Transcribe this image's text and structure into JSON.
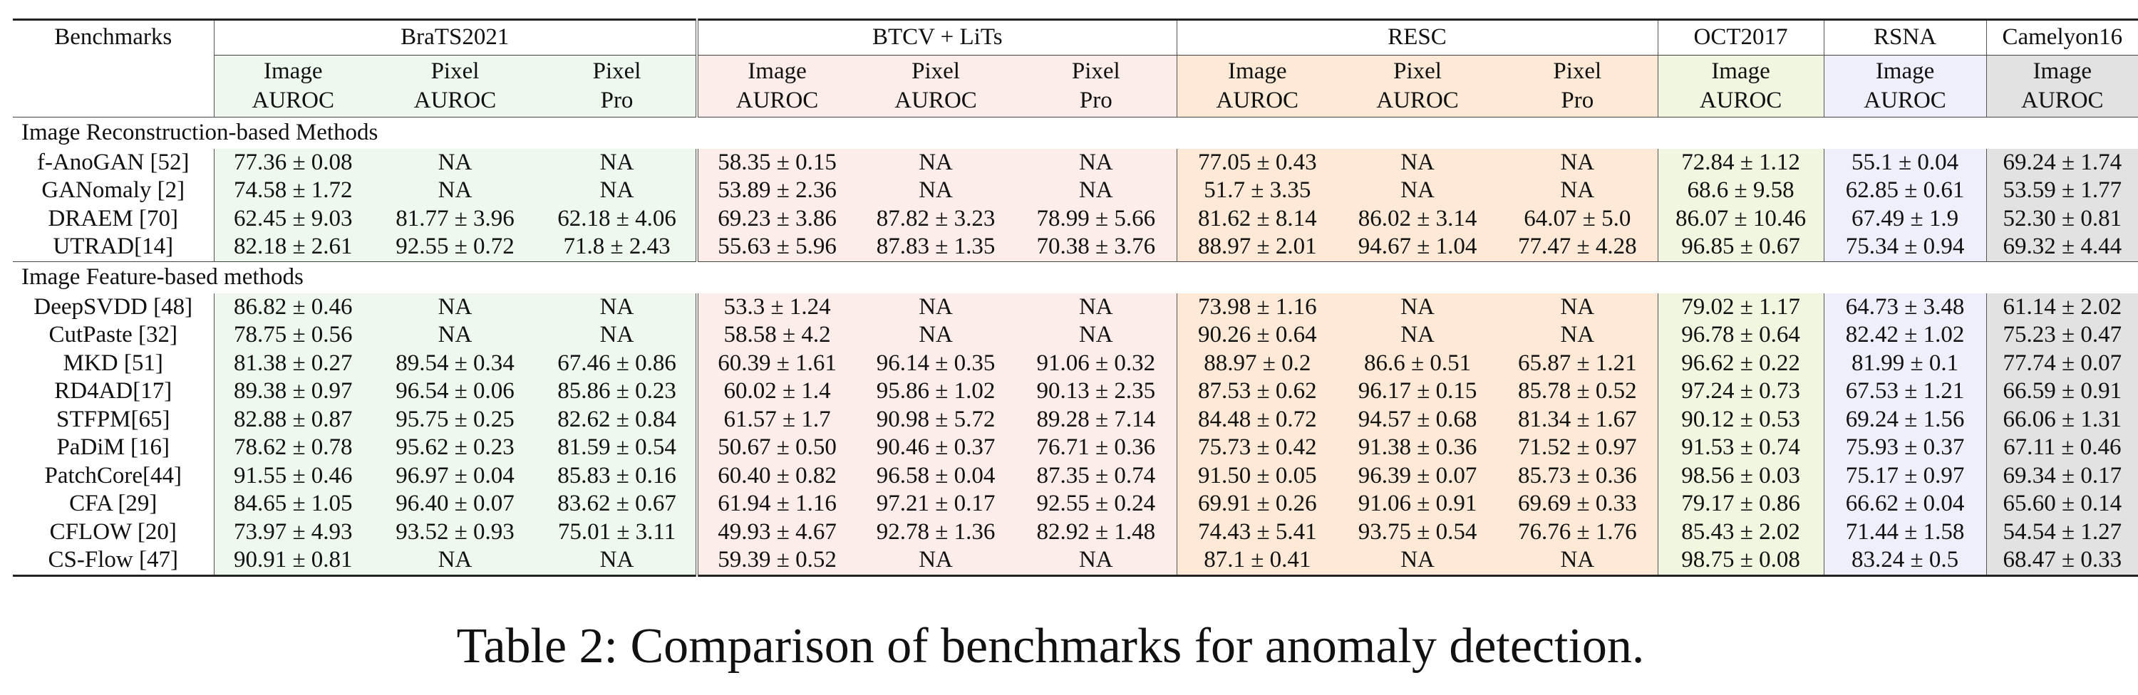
{
  "header": {
    "benchmarks_label": "Benchmarks",
    "datasets": [
      {
        "name": "BraTS2021",
        "metrics": [
          "Image\nAUROC",
          "Pixel\nAUROC",
          "Pixel\nPro"
        ],
        "color": "#eef8ee"
      },
      {
        "name": "BTCV + LiTs",
        "metrics": [
          "Image\nAUROC",
          "Pixel\nAUROC",
          "Pixel\nPro"
        ],
        "color": "#fcecea"
      },
      {
        "name": "RESC",
        "metrics": [
          "Image\nAUROC",
          "Pixel\nAUROC",
          "Pixel\nPro"
        ],
        "color": "#fde9d6"
      },
      {
        "name": "OCT2017",
        "metrics": [
          "Image\nAUROC"
        ],
        "color": "#f0f6e0"
      },
      {
        "name": "RSNA",
        "metrics": [
          "Image\nAUROC"
        ],
        "color": "#eeeffb"
      },
      {
        "name": "Camelyon16",
        "metrics": [
          "Image\nAUROC"
        ],
        "color": "#e2e2e2"
      }
    ]
  },
  "sections": [
    {
      "title": "Image Reconstruction-based Methods",
      "rows": [
        {
          "method": "f-AnoGAN [52]",
          "values": [
            "77.36 ± 0.08",
            "NA",
            "NA",
            "58.35 ± 0.15",
            "NA",
            "NA",
            "77.05 ± 0.43",
            "NA",
            "NA",
            "72.84 ± 1.12",
            "55.1 ± 0.04",
            "69.24 ± 1.74"
          ]
        },
        {
          "method": "GANomaly [2]",
          "values": [
            "74.58 ± 1.72",
            "NA",
            "NA",
            "53.89 ± 2.36",
            "NA",
            "NA",
            "51.7 ± 3.35",
            "NA",
            "NA",
            "68.6 ± 9.58",
            "62.85 ± 0.61",
            "53.59 ± 1.77"
          ]
        },
        {
          "method": "DRAEM [70]",
          "values": [
            "62.45 ± 9.03",
            "81.77 ± 3.96",
            "62.18 ± 4.06",
            "69.23 ± 3.86",
            "87.82 ± 3.23",
            "78.99 ± 5.66",
            "81.62 ± 8.14",
            "86.02 ± 3.14",
            "64.07 ± 5.0",
            "86.07 ± 10.46",
            "67.49 ± 1.9",
            "52.30 ± 0.81"
          ]
        },
        {
          "method": "UTRAD[14]",
          "values": [
            "82.18 ± 2.61",
            "92.55 ± 0.72",
            "71.8 ± 2.43",
            "55.63 ± 5.96",
            "87.83 ± 1.35",
            "70.38 ± 3.76",
            "88.97 ± 2.01",
            "94.67 ± 1.04",
            "77.47 ± 4.28",
            "96.85 ± 0.67",
            "75.34 ± 0.94",
            "69.32 ± 4.44"
          ]
        }
      ]
    },
    {
      "title": "Image Feature-based methods",
      "rows": [
        {
          "method": "DeepSVDD [48]",
          "values": [
            "86.82 ± 0.46",
            "NA",
            "NA",
            "53.3 ± 1.24",
            "NA",
            "NA",
            "73.98 ± 1.16",
            "NA",
            "NA",
            "79.02 ± 1.17",
            "64.73 ± 3.48",
            "61.14 ± 2.02"
          ]
        },
        {
          "method": "CutPaste [32]",
          "values": [
            "78.75 ± 0.56",
            "NA",
            "NA",
            "58.58 ± 4.2",
            "NA",
            "NA",
            "90.26 ± 0.64",
            "NA",
            "NA",
            "96.78 ± 0.64",
            "82.42 ± 1.02",
            "75.23 ± 0.47"
          ]
        },
        {
          "method": "MKD [51]",
          "values": [
            "81.38 ± 0.27",
            "89.54 ± 0.34",
            "67.46 ± 0.86",
            "60.39 ± 1.61",
            "96.14 ± 0.35",
            "91.06 ± 0.32",
            "88.97 ± 0.2",
            "86.6 ± 0.51",
            "65.87 ± 1.21",
            "96.62 ± 0.22",
            "81.99 ± 0.1",
            "77.74 ± 0.07"
          ]
        },
        {
          "method": "RD4AD[17]",
          "values": [
            "89.38 ± 0.97",
            "96.54 ± 0.06",
            "85.86 ± 0.23",
            "60.02 ± 1.4",
            "95.86 ± 1.02",
            "90.13 ± 2.35",
            "87.53 ± 0.62",
            "96.17 ± 0.15",
            "85.78 ± 0.52",
            "97.24 ± 0.73",
            "67.53 ± 1.21",
            "66.59 ± 0.91"
          ]
        },
        {
          "method": "STFPM[65]",
          "values": [
            "82.88 ± 0.87",
            "95.75 ± 0.25",
            "82.62 ± 0.84",
            "61.57 ± 1.7",
            "90.98 ± 5.72",
            "89.28 ± 7.14",
            "84.48 ± 0.72",
            "94.57 ± 0.68",
            "81.34 ± 1.67",
            "90.12 ± 0.53",
            "69.24 ± 1.56",
            "66.06 ± 1.31"
          ]
        },
        {
          "method": "PaDiM [16]",
          "values": [
            "78.62 ± 0.78",
            "95.62 ± 0.23",
            "81.59 ± 0.54",
            "50.67 ± 0.50",
            "90.46 ± 0.37",
            "76.71 ± 0.36",
            "75.73 ± 0.42",
            "91.38 ± 0.36",
            "71.52 ± 0.97",
            "91.53 ± 0.74",
            "75.93 ± 0.37",
            "67.11 ± 0.46"
          ]
        },
        {
          "method": "PatchCore[44]",
          "values": [
            "91.55 ± 0.46",
            "96.97 ± 0.04",
            "85.83 ± 0.16",
            "60.40 ± 0.82",
            "96.58 ± 0.04",
            "87.35 ± 0.74",
            "91.50 ± 0.05",
            "96.39 ± 0.07",
            "85.73 ± 0.36",
            "98.56 ± 0.03",
            "75.17 ± 0.97",
            "69.34 ± 0.17"
          ]
        },
        {
          "method": "CFA [29]",
          "values": [
            "84.65 ± 1.05",
            "96.40 ± 0.07",
            "83.62 ± 0.67",
            "61.94 ± 1.16",
            "97.21 ± 0.17",
            "92.55 ± 0.24",
            "69.91 ± 0.26",
            "91.06 ± 0.91",
            "69.69 ± 0.33",
            "79.17 ± 0.86",
            "66.62 ± 0.04",
            "65.60 ± 0.14"
          ]
        },
        {
          "method": "CFLOW [20]",
          "values": [
            "73.97 ± 4.93",
            "93.52 ± 0.93",
            "75.01 ± 3.11",
            "49.93 ± 4.67",
            "92.78 ± 1.36",
            "82.92 ± 1.48",
            "74.43 ± 5.41",
            "93.75 ± 0.54",
            "76.76 ± 1.76",
            "85.43 ± 2.02",
            "71.44 ± 1.58",
            "54.54 ± 1.27"
          ]
        },
        {
          "method": "CS-Flow [47]",
          "values": [
            "90.91 ± 0.81",
            "NA",
            "NA",
            "59.39 ± 0.52",
            "NA",
            "NA",
            "87.1 ± 0.41",
            "NA",
            "NA",
            "98.75 ± 0.08",
            "83.24 ± 0.5",
            "68.47 ± 0.33"
          ]
        }
      ]
    }
  ],
  "caption": "Table 2:  Comparison of benchmarks for anomaly detection."
}
